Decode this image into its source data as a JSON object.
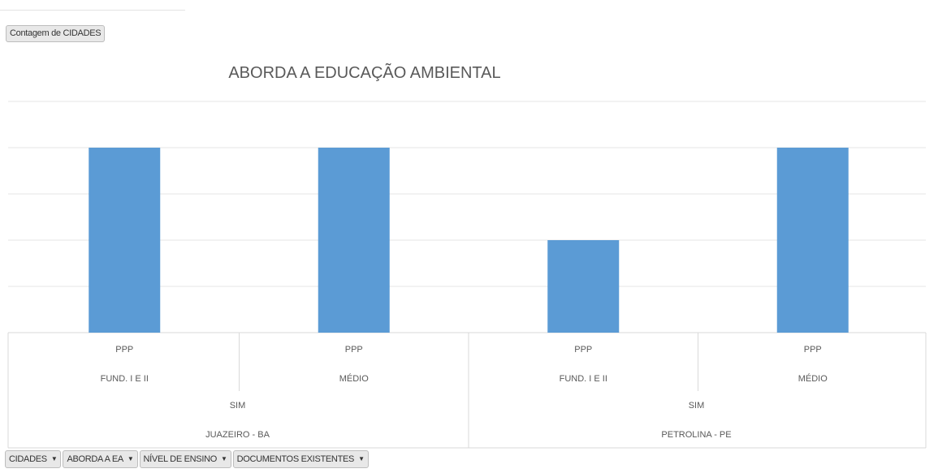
{
  "value_field": "Contagem de CIDADES",
  "axis_fields": [
    {
      "label": "CIDADES"
    },
    {
      "label": "ABORDA A EA"
    },
    {
      "label": "NÍVEL DE ENSINO"
    },
    {
      "label": "DOCUMENTOS EXISTENTES"
    }
  ],
  "colors": {
    "bar": "#5b9bd5",
    "grid": "#e6e6e6",
    "divider": "#d9d9d9",
    "text": "#595959"
  },
  "chart_data": {
    "type": "bar",
    "title": "ABORDA A EDUCAÇÃO AMBIENTAL",
    "xlabel": "",
    "ylabel": "",
    "ylim": [
      0,
      5
    ],
    "grid": true,
    "y_tick_labels_shown": false,
    "categories": [
      {
        "documento": "PPP",
        "nivel": "FUND. I E II",
        "aborda": "SIM",
        "cidade": "JUAZEIRO - BA"
      },
      {
        "documento": "PPP",
        "nivel": "MÉDIO",
        "aborda": "SIM",
        "cidade": "JUAZEIRO - BA"
      },
      {
        "documento": "PPP",
        "nivel": "FUND. I E II",
        "aborda": "SIM",
        "cidade": "PETROLINA - PE"
      },
      {
        "documento": "PPP",
        "nivel": "MÉDIO",
        "aborda": "SIM",
        "cidade": "PETROLINA - PE"
      }
    ],
    "values": [
      4,
      4,
      2,
      4
    ],
    "group_labels": {
      "aborda": [
        "SIM",
        "SIM"
      ],
      "cidade": [
        "JUAZEIRO - BA",
        "PETROLINA - PE"
      ]
    }
  }
}
